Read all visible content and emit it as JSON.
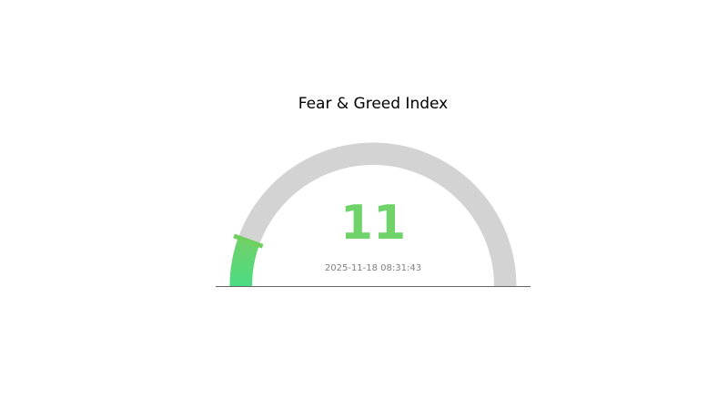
{
  "chart_data": {
    "type": "gauge",
    "title": "Fear & Greed Index",
    "value": 11,
    "value_label": "11",
    "min": 0,
    "max": 100,
    "timestamp": "2025-11-18 08:31:43",
    "colors": {
      "track": "#d3d3d3",
      "fill_start": "#4cdc84",
      "fill_end": "#72d066",
      "value_text": "#6fd36a",
      "marker": "#6fd060",
      "timestamp_text": "#808080",
      "baseline": "#666666"
    }
  }
}
